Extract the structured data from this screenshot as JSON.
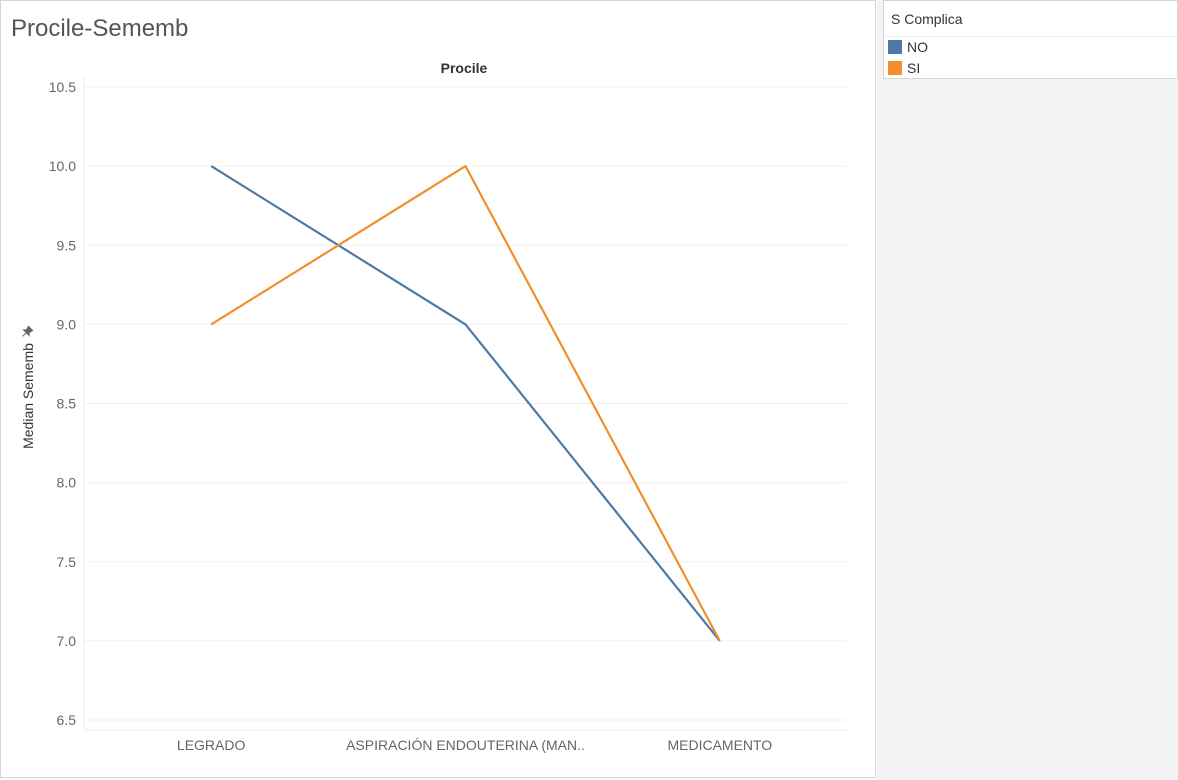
{
  "worksheet": {
    "title": "Procile-Sememb"
  },
  "legend": {
    "title": "S Complica",
    "items": [
      {
        "label": "NO",
        "color": "#4e79a7"
      },
      {
        "label": "SI",
        "color": "#f28e2b"
      }
    ]
  },
  "chart_data": {
    "type": "line",
    "title": "Procile",
    "ylabel": "Median Sememb",
    "xlabel": "",
    "categories": [
      "LEGRADO",
      "ASPIRACIÓN ENDOUTERINA (MAN..",
      "MEDICAMENTO"
    ],
    "series": [
      {
        "name": "NO",
        "color": "#4e79a7",
        "values": [
          10,
          9,
          7
        ]
      },
      {
        "name": "SI",
        "color": "#f28e2b",
        "values": [
          9,
          10,
          7
        ]
      }
    ],
    "ylim": [
      6.5,
      10.5
    ],
    "yticks": [
      "10.5",
      "10.0",
      "9.5",
      "9.0",
      "8.5",
      "8.0",
      "7.5",
      "7.0",
      "6.5"
    ],
    "grid": true,
    "legend_position": "right"
  }
}
